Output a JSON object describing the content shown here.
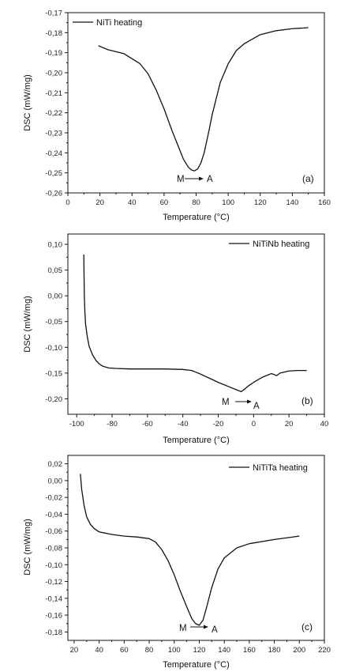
{
  "chart_data": [
    {
      "type": "line",
      "panel_label": "(a)",
      "legend": "NiTi heating",
      "xlabel": "Temperature (°C)",
      "ylabel": "DSC (mW/mg)",
      "xlim": [
        0,
        160
      ],
      "ylim": [
        -0.26,
        -0.17
      ],
      "xticks": [
        0,
        20,
        40,
        60,
        80,
        100,
        120,
        140,
        160
      ],
      "yticks": [
        -0.26,
        -0.25,
        -0.24,
        -0.23,
        -0.22,
        -0.21,
        -0.2,
        -0.19,
        -0.18,
        -0.17
      ],
      "annotation": {
        "from": "M",
        "to": "A"
      },
      "series": [
        {
          "x": [
            19,
            25,
            35,
            45,
            50,
            55,
            60,
            65,
            70,
            72,
            75,
            77,
            79,
            81,
            83,
            85,
            88,
            90,
            95,
            100,
            105,
            110,
            120,
            130,
            140,
            150
          ],
          "y": [
            -0.1865,
            -0.1885,
            -0.1905,
            -0.1955,
            -0.2005,
            -0.2085,
            -0.218,
            -0.229,
            -0.239,
            -0.243,
            -0.247,
            -0.2485,
            -0.249,
            -0.248,
            -0.245,
            -0.24,
            -0.229,
            -0.221,
            -0.205,
            -0.1955,
            -0.189,
            -0.1855,
            -0.181,
            -0.179,
            -0.178,
            -0.1775
          ]
        }
      ]
    },
    {
      "type": "line",
      "panel_label": "(b)",
      "legend": "NiTiNb heating",
      "xlabel": "Temperature (°C)",
      "ylabel": "DSC (mW/mg)",
      "xlim": [
        -105,
        40
      ],
      "ylim": [
        -0.23,
        0.12
      ],
      "xticks": [
        -100,
        -80,
        -60,
        -40,
        -20,
        0,
        20,
        40
      ],
      "yticks": [
        -0.2,
        -0.15,
        -0.1,
        -0.05,
        0.0,
        0.05,
        0.1
      ],
      "annotation": {
        "from": "M",
        "to": "A"
      },
      "series": [
        {
          "x": [
            -96,
            -95.9,
            -95.7,
            -95.4,
            -95,
            -94,
            -93,
            -91,
            -89,
            -87,
            -85,
            -82,
            -78,
            -70,
            -60,
            -50,
            -40,
            -35,
            -30,
            -25,
            -20,
            -15,
            -10,
            -7,
            -5,
            -3,
            0,
            5,
            10,
            11,
            13,
            15,
            20,
            25,
            30
          ],
          "y": [
            0.08,
            0.05,
            0.0,
            -0.03,
            -0.055,
            -0.08,
            -0.098,
            -0.115,
            -0.126,
            -0.133,
            -0.137,
            -0.14,
            -0.141,
            -0.142,
            -0.142,
            -0.142,
            -0.143,
            -0.145,
            -0.152,
            -0.16,
            -0.168,
            -0.175,
            -0.182,
            -0.186,
            -0.181,
            -0.175,
            -0.168,
            -0.158,
            -0.151,
            -0.152,
            -0.155,
            -0.15,
            -0.146,
            -0.145,
            -0.145
          ]
        }
      ]
    },
    {
      "type": "line",
      "panel_label": "(c)",
      "legend": "NiTiTa heating",
      "xlabel": "Temperature (°C)",
      "ylabel": "DSC (mW/mg)",
      "xlim": [
        15,
        220
      ],
      "ylim": [
        -0.19,
        0.03
      ],
      "xticks": [
        20,
        40,
        60,
        80,
        100,
        120,
        140,
        160,
        180,
        200,
        220
      ],
      "yticks": [
        -0.18,
        -0.16,
        -0.14,
        -0.12,
        -0.1,
        -0.08,
        -0.06,
        -0.04,
        -0.02,
        0.0,
        0.02
      ],
      "annotation": {
        "from": "M",
        "to": "A"
      },
      "series": [
        {
          "x": [
            25,
            26,
            28,
            30,
            33,
            36,
            40,
            50,
            60,
            70,
            80,
            85,
            90,
            95,
            100,
            105,
            110,
            114,
            117,
            120,
            123,
            126,
            130,
            135,
            140,
            150,
            160,
            180,
            200
          ],
          "y": [
            0.008,
            -0.01,
            -0.03,
            -0.043,
            -0.052,
            -0.057,
            -0.061,
            -0.064,
            -0.066,
            -0.067,
            -0.069,
            -0.073,
            -0.082,
            -0.095,
            -0.112,
            -0.132,
            -0.15,
            -0.164,
            -0.17,
            -0.172,
            -0.166,
            -0.15,
            -0.127,
            -0.105,
            -0.092,
            -0.08,
            -0.075,
            -0.07,
            -0.066
          ]
        }
      ]
    }
  ]
}
